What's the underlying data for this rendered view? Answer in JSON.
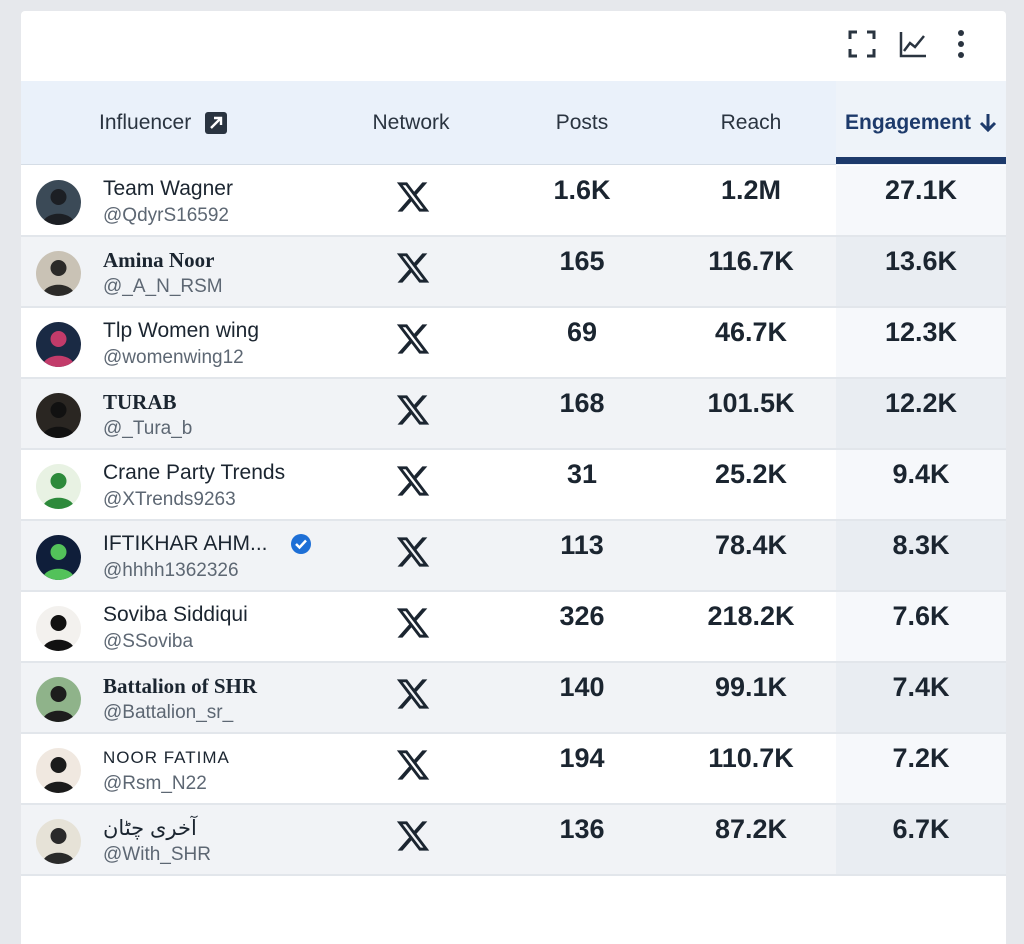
{
  "header": {
    "influencer": "Influencer",
    "network": "Network",
    "posts": "Posts",
    "reach": "Reach",
    "engagement": "Engagement"
  },
  "toolbar": {
    "icons": [
      "fullscreen-icon",
      "line-chart-icon",
      "more-vertical-icon"
    ]
  },
  "accent_color": "#1d3a6b",
  "rows": [
    {
      "name": "Team Wagner",
      "handle": "@QdyrS16592",
      "network": "X",
      "posts": "1.6K",
      "reach": "1.2M",
      "engagement": "27.1K",
      "verified": false
    },
    {
      "name": "Amina Noor",
      "handle": "@_A_N_RSM",
      "network": "X",
      "posts": "165",
      "reach": "116.7K",
      "engagement": "13.6K",
      "verified": false
    },
    {
      "name": "Tlp Women wing",
      "handle": "@womenwing12",
      "network": "X",
      "posts": "69",
      "reach": "46.7K",
      "engagement": "12.3K",
      "verified": false
    },
    {
      "name": "TURAB",
      "handle": "@_Tura_b",
      "network": "X",
      "posts": "168",
      "reach": "101.5K",
      "engagement": "12.2K",
      "verified": false
    },
    {
      "name": "Crane Party Trends",
      "handle": "@XTrends9263",
      "network": "X",
      "posts": "31",
      "reach": "25.2K",
      "engagement": "9.4K",
      "verified": false
    },
    {
      "name": "IFTIKHAR AHM...",
      "handle": "@hhhh1362326",
      "network": "X",
      "posts": "113",
      "reach": "78.4K",
      "engagement": "8.3K",
      "verified": true
    },
    {
      "name": "Soviba Siddiqui",
      "handle": "@SSoviba",
      "network": "X",
      "posts": "326",
      "reach": "218.2K",
      "engagement": "7.6K",
      "verified": false
    },
    {
      "name": "Battalion of SHR",
      "handle": "@Battalion_sr_",
      "network": "X",
      "posts": "140",
      "reach": "99.1K",
      "engagement": "7.4K",
      "verified": false
    },
    {
      "name": "NOOR FATIMA",
      "handle": "@Rsm_N22",
      "network": "X",
      "posts": "194",
      "reach": "110.7K",
      "engagement": "7.2K",
      "verified": false
    },
    {
      "name": "آخری چٹان",
      "handle": "@With_SHR",
      "network": "X",
      "posts": "136",
      "reach": "87.2K",
      "engagement": "6.7K",
      "verified": false
    }
  ]
}
